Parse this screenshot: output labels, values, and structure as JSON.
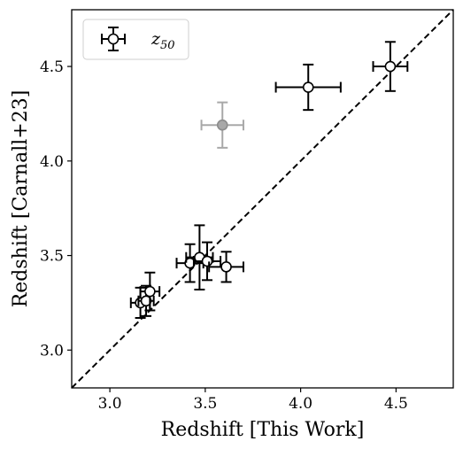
{
  "chart_data": {
    "type": "scatter",
    "xlabel": "Redshift [This Work]",
    "ylabel": "Redshift [Carnall+23]",
    "xlim": [
      2.8,
      4.8
    ],
    "ylim": [
      2.8,
      4.8
    ],
    "xticks": [
      "3.0",
      "3.5",
      "4.0",
      "4.5"
    ],
    "yticks": [
      "3.0",
      "3.5",
      "4.0",
      "4.5"
    ],
    "grid": false,
    "legend": {
      "placement": "top-left",
      "entries": [
        {
          "symbol": "z",
          "subscript": "50"
        }
      ]
    },
    "reference_line": {
      "style": "dashed",
      "color": "#000000",
      "from": [
        2.8,
        2.8
      ],
      "to": [
        4.8,
        4.8
      ]
    },
    "series": [
      {
        "marker": "open-circle",
        "color": "#000000",
        "points": [
          {
            "x": 3.16,
            "y": 3.25,
            "xerr": 0.05,
            "yerr": 0.08
          },
          {
            "x": 3.19,
            "y": 3.26,
            "xerr": 0.04,
            "yerr": 0.08
          },
          {
            "x": 3.21,
            "y": 3.31,
            "xerr": 0.05,
            "yerr": 0.1
          },
          {
            "x": 3.42,
            "y": 3.46,
            "xerr": 0.07,
            "yerr": 0.1
          },
          {
            "x": 3.47,
            "y": 3.49,
            "xerr": 0.07,
            "yerr": 0.17
          },
          {
            "x": 3.51,
            "y": 3.47,
            "xerr": 0.07,
            "yerr": 0.1
          },
          {
            "x": 3.61,
            "y": 3.44,
            "xerr": 0.09,
            "yerr": 0.08
          },
          {
            "x": 4.04,
            "y": 4.39,
            "xerr": 0.17,
            "yerr": 0.12
          },
          {
            "x": 4.47,
            "y": 4.5,
            "xerr": 0.09,
            "yerr": 0.13
          }
        ]
      },
      {
        "marker": "filled-circle",
        "color": "#8c8c8c",
        "points": [
          {
            "x": 3.59,
            "y": 4.19,
            "xerr": 0.11,
            "yerr": 0.12
          }
        ]
      }
    ]
  }
}
